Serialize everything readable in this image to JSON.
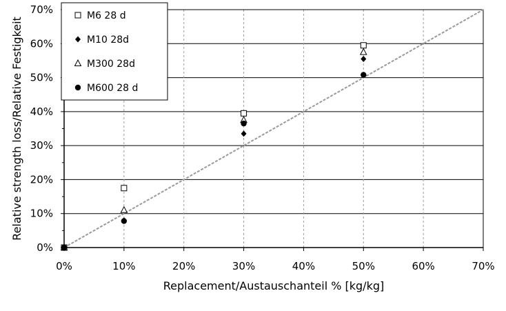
{
  "chart_data": {
    "type": "scatter",
    "xlabel": "Replacement/Austauschanteil % [kg/kg]",
    "ylabel": "Relative strength loss/Relative Festigkeit",
    "xlim": [
      0,
      70
    ],
    "ylim": [
      0,
      70
    ],
    "x_ticks": [
      "0%",
      "10%",
      "20%",
      "30%",
      "40%",
      "50%",
      "60%",
      "70%"
    ],
    "y_ticks": [
      "0%",
      "10%",
      "20%",
      "30%",
      "40%",
      "50%",
      "60%",
      "70%"
    ],
    "grid": "both",
    "legend_position": "top-left",
    "reference_line": {
      "x": [
        0,
        70
      ],
      "y": [
        0,
        70
      ],
      "style": "dashed",
      "color": "#999999"
    },
    "series": [
      {
        "name": "M6 28 d",
        "marker": "square-open",
        "color": "#000000",
        "points": [
          {
            "x": 0,
            "y": 0
          },
          {
            "x": 10,
            "y": 17.5
          },
          {
            "x": 30,
            "y": 39.5
          },
          {
            "x": 50,
            "y": 59.5
          }
        ]
      },
      {
        "name": "M10 28d",
        "marker": "diamond-filled",
        "color": "#000000",
        "points": [
          {
            "x": 0,
            "y": 0
          },
          {
            "x": 10,
            "y": 8
          },
          {
            "x": 30,
            "y": 33.5
          },
          {
            "x": 50,
            "y": 55.5
          }
        ]
      },
      {
        "name": "M300 28d",
        "marker": "triangle-open",
        "color": "#000000",
        "points": [
          {
            "x": 0,
            "y": 0
          },
          {
            "x": 10,
            "y": 11
          },
          {
            "x": 30,
            "y": 37.5
          },
          {
            "x": 50,
            "y": 57.5
          }
        ]
      },
      {
        "name": "M600 28 d",
        "marker": "circle-filled",
        "color": "#000000",
        "points": [
          {
            "x": 0,
            "y": 0
          },
          {
            "x": 10,
            "y": 7.8
          },
          {
            "x": 30,
            "y": 36.5
          },
          {
            "x": 50,
            "y": 50.8
          }
        ]
      }
    ]
  }
}
